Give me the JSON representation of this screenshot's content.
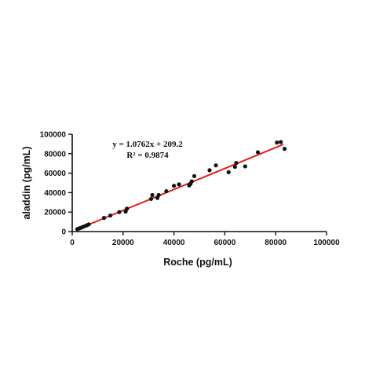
{
  "chart_data": {
    "type": "scatter",
    "xlabel": "Roche (pg/mL)",
    "ylabel": "aladdin (pg/mL)",
    "xlim": [
      0,
      100000
    ],
    "ylim": [
      0,
      100000
    ],
    "xticks": [
      0,
      20000,
      40000,
      60000,
      80000,
      100000
    ],
    "yticks": [
      0,
      20000,
      40000,
      60000,
      80000,
      100000
    ],
    "xtick_labels": [
      "0",
      "20000",
      "40000",
      "60000",
      "80000",
      "100000"
    ],
    "ytick_labels": [
      "0",
      "20000",
      "40000",
      "60000",
      "80000",
      "100000"
    ],
    "grid": false,
    "series": [
      {
        "marker_color": "#111111",
        "points": [
          [
            2000,
            2500
          ],
          [
            2800,
            3300
          ],
          [
            3500,
            4000
          ],
          [
            4200,
            4800
          ],
          [
            5000,
            5600
          ],
          [
            5800,
            6500
          ],
          [
            6500,
            7400
          ],
          [
            12500,
            14000
          ],
          [
            15000,
            16500
          ],
          [
            18500,
            20000
          ],
          [
            21000,
            20500
          ],
          [
            21500,
            23500
          ],
          [
            31000,
            33500
          ],
          [
            31500,
            37500
          ],
          [
            33500,
            34500
          ],
          [
            34000,
            37500
          ],
          [
            37000,
            41500
          ],
          [
            40000,
            47000
          ],
          [
            42000,
            48500
          ],
          [
            46000,
            47500
          ],
          [
            46500,
            49000
          ],
          [
            47000,
            51500
          ],
          [
            48000,
            57000
          ],
          [
            54000,
            63000
          ],
          [
            56500,
            68000
          ],
          [
            61500,
            61000
          ],
          [
            64000,
            66500
          ],
          [
            64500,
            70500
          ],
          [
            68000,
            67000
          ],
          [
            73000,
            81500
          ],
          [
            80500,
            91500
          ],
          [
            82000,
            92000
          ],
          [
            83500,
            85000
          ]
        ]
      }
    ],
    "fit_line": {
      "slope": 1.0762,
      "intercept": 209.2,
      "x_range": [
        2000,
        83000
      ],
      "color": "#e02020"
    },
    "annotations": [
      "y = 1.0762x + 209.2",
      "R² = 0.9874"
    ]
  }
}
